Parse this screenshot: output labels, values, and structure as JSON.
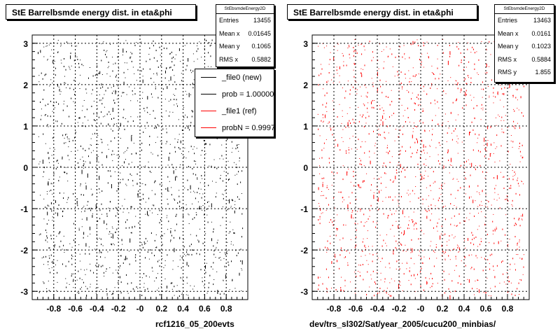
{
  "chart_data": [
    {
      "type": "scatter",
      "title": "StE Barrelbsmde energy dist. in eta&phi",
      "xlabel": "rcf1216_05_200evts",
      "ylabel": "",
      "xlim": [
        -1.0,
        1.0
      ],
      "ylim": [
        -3.2,
        3.2
      ],
      "x_ticks": [
        -0.8,
        -0.6,
        -0.4,
        -0.2,
        0,
        0.2,
        0.4,
        0.6,
        0.8
      ],
      "x_tick_labels": [
        "-0.8",
        "-0.6",
        "-0.4",
        "-0.2",
        "-0",
        "0.2",
        "0.4",
        "0.6",
        "0.8"
      ],
      "y_ticks": [
        -3,
        -2,
        -1,
        0,
        1,
        2,
        3
      ],
      "y_tick_labels": [
        "-3",
        "-2",
        "-1",
        "0",
        "1",
        "2",
        "3"
      ],
      "grid": true,
      "marker_color": "#000000",
      "series": [
        {
          "name": "_file0 (new)",
          "color": "#000000"
        },
        {
          "name": "_file1 (ref)",
          "color": "#ff0000"
        }
      ],
      "stats": {
        "title": "StEbsmdeEnergy2D",
        "entries_label": "Entries",
        "entries": "13455",
        "mean_x_label": "Mean x",
        "mean_x": "0.01645",
        "mean_y_label": "Mean y",
        "mean_y": "0.1065",
        "rms_x_label": "RMS x",
        "rms_x": "0.5882"
      },
      "legend": {
        "placement": "top-right",
        "entries": [
          {
            "label": "_file0 (new)",
            "color": "#000000"
          },
          {
            "label": "prob = 1.000000",
            "color": "#000000"
          },
          {
            "label": "_file1 (ref)",
            "color": "#ff0000"
          },
          {
            "label": "probN = 0.999781",
            "color": "#ff0000"
          }
        ]
      }
    },
    {
      "type": "scatter",
      "title": "StE Barrelbsmde energy dist. in eta&phi",
      "xlabel": "dev/trs_sl302/Sat/year_2005/cucu200_minbias/",
      "ylabel": "",
      "xlim": [
        -1.0,
        1.0
      ],
      "ylim": [
        -3.2,
        3.2
      ],
      "x_ticks": [
        -0.8,
        -0.6,
        -0.4,
        -0.2,
        0,
        0.2,
        0.4,
        0.6,
        0.8
      ],
      "x_tick_labels": [
        "-0.8",
        "-0.6",
        "-0.4",
        "-0.2",
        "-0",
        "0.2",
        "0.4",
        "0.6",
        "0.8"
      ],
      "y_ticks": [
        -3,
        -2,
        -1,
        0,
        1,
        2,
        3
      ],
      "y_tick_labels": [
        "-3",
        "-2",
        "-1",
        "0",
        "1",
        "2",
        "3"
      ],
      "grid": true,
      "marker_color": "#ff0000",
      "stats": {
        "title": "StEbsmdeEnergy2D",
        "entries_label": "Entries",
        "entries": "13463",
        "mean_x_label": "Mean x",
        "mean_x": "0.0161",
        "mean_y_label": "Mean y",
        "mean_y": "0.1023",
        "rms_x_label": "RMS x",
        "rms_x": "0.5884",
        "rms_y_label": "RMS y",
        "rms_y": "1.855"
      }
    }
  ]
}
